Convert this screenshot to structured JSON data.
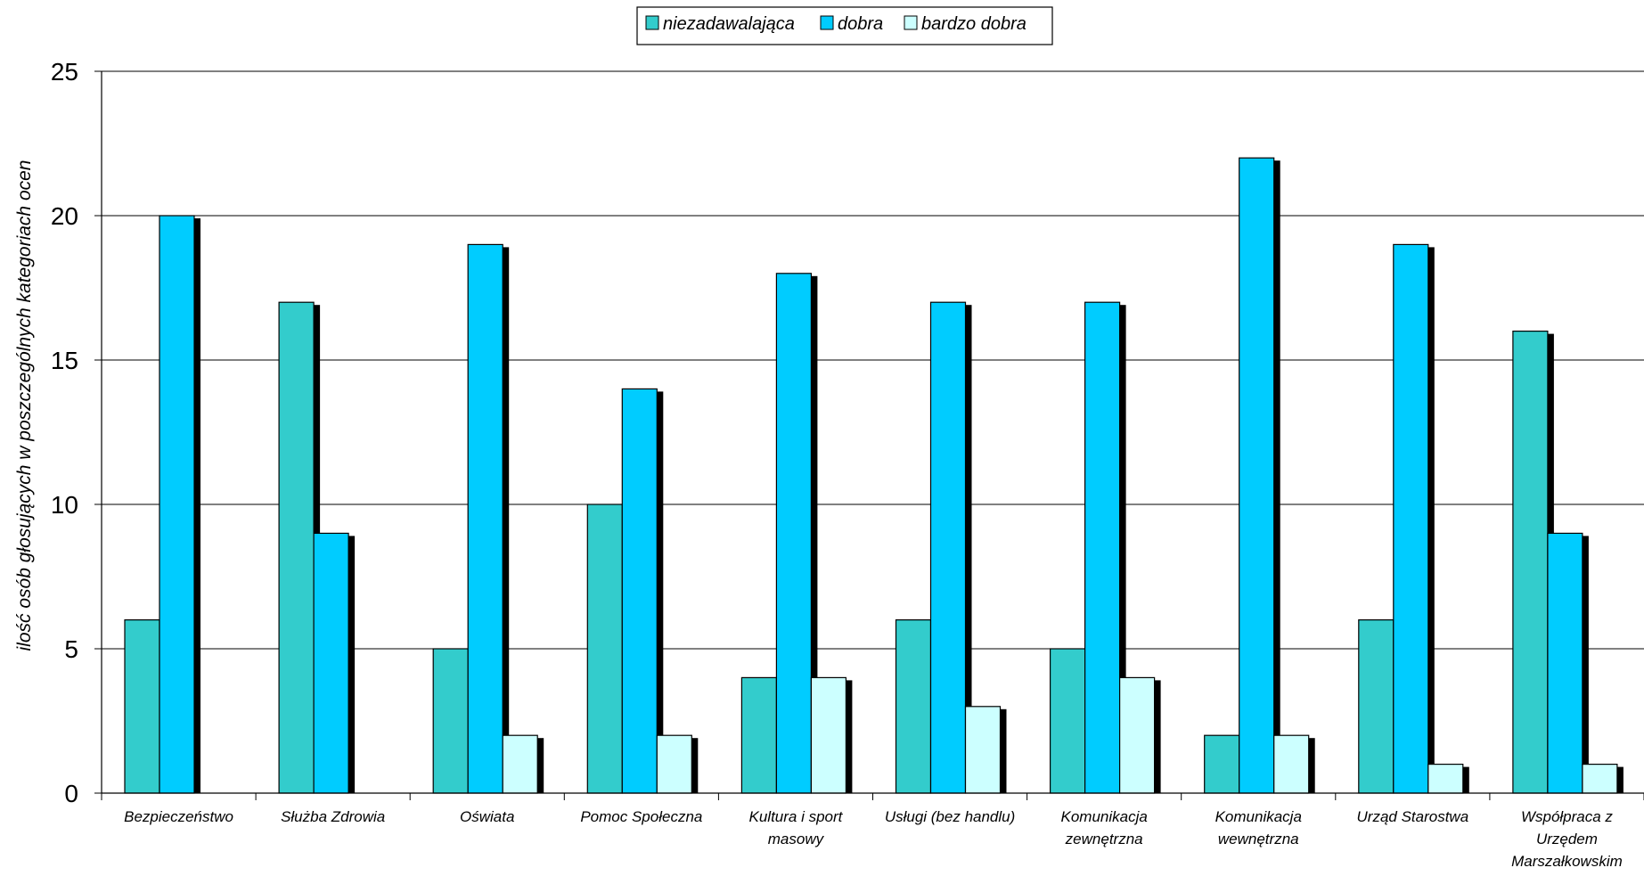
{
  "chart_data": {
    "type": "bar",
    "title": "",
    "xlabel": "",
    "ylabel": "ilość osób głosujących w poszczególnych kategoriach ocen",
    "ylim": [
      0,
      25
    ],
    "yticks": [
      0,
      5,
      10,
      15,
      20,
      25
    ],
    "grid": true,
    "legend_position": "top-center",
    "categories": [
      "Bezpieczeństwo",
      "Służba Zdrowia",
      "Oświata",
      "Pomoc Społeczna",
      "Kultura i sport masowy",
      "Usługi (bez handlu)",
      "Komunikacja zewnętrzna",
      "Komunikacja wewnętrzna",
      "Urząd Starostwa",
      "Współpraca z Urzędem Marszałkowskim"
    ],
    "category_label_lines": [
      [
        "Bezpieczeństwo"
      ],
      [
        "Służba Zdrowia"
      ],
      [
        "Oświata"
      ],
      [
        "Pomoc Społeczna"
      ],
      [
        "Kultura i sport",
        "masowy"
      ],
      [
        "Usługi (bez handlu)"
      ],
      [
        "Komunikacja",
        "zewnętrzna"
      ],
      [
        "Komunikacja",
        "wewnętrzna"
      ],
      [
        "Urząd Starostwa"
      ],
      [
        "Współpraca z",
        "Urzędem",
        "Marszałkowskim"
      ]
    ],
    "series": [
      {
        "name": "niezadawalająca",
        "color": "#33cccc",
        "values": [
          6,
          17,
          5,
          10,
          4,
          6,
          5,
          2,
          6,
          16
        ]
      },
      {
        "name": "dobra",
        "color": "#00ccff",
        "values": [
          20,
          9,
          19,
          14,
          18,
          17,
          17,
          22,
          19,
          9
        ]
      },
      {
        "name": "bardzo dobra",
        "color": "#ccffff",
        "values": [
          0,
          0,
          2,
          2,
          4,
          3,
          4,
          2,
          1,
          1
        ]
      }
    ]
  }
}
